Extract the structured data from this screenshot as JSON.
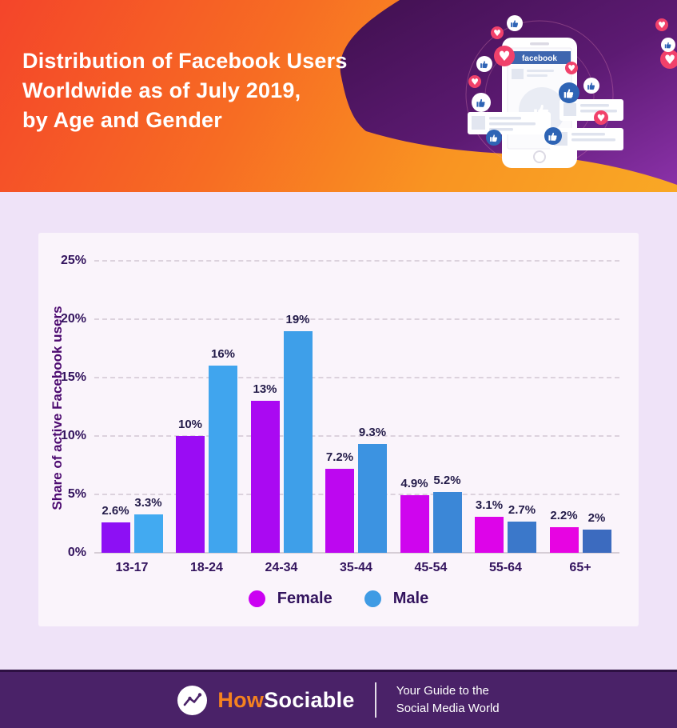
{
  "header": {
    "title_lines": [
      "Distribution of Facebook Users",
      "Worldwide as of July 2019,",
      "by Age and Gender"
    ],
    "phone": {
      "brand": "facebook"
    }
  },
  "chart_data": {
    "type": "bar",
    "title": "Distribution of Facebook users worldwide as of July 2019, by age and gender",
    "categories": [
      "13-17",
      "18-24",
      "24-34",
      "35-44",
      "45-54",
      "55-64",
      "65+"
    ],
    "series": [
      {
        "name": "Female",
        "values": [
          2.6,
          10,
          13,
          7.2,
          4.9,
          3.1,
          2.2
        ],
        "labels": [
          "2.6%",
          "10%",
          "13%",
          "7.2%",
          "4.9%",
          "3.1%",
          "2.2%"
        ],
        "colors": [
          "#8d10f4",
          "#9a0cf4",
          "#aa09f2",
          "#bd07f0",
          "#cf05ee",
          "#dd04e9",
          "#e704e2"
        ],
        "legend_color": "#cb01f2"
      },
      {
        "name": "Male",
        "values": [
          3.3,
          16,
          19,
          9.3,
          5.2,
          2.7,
          2
        ],
        "labels": [
          "3.3%",
          "16%",
          "19%",
          "9.3%",
          "5.2%",
          "2.7%",
          "2%"
        ],
        "colors": [
          "#42aaf1",
          "#40a5ee",
          "#3e9fe9",
          "#3c93e1",
          "#3b87d7",
          "#3b78ca",
          "#3c6bbf"
        ],
        "legend_color": "#3f9be4"
      }
    ],
    "xlabel": "",
    "ylabel": "Share of active Facebook users",
    "yticks": [
      "0%",
      "5%",
      "10%",
      "15%",
      "20%",
      "25%"
    ],
    "ylim": [
      0,
      25
    ],
    "grid": true,
    "legend_position": "bottom"
  },
  "footer": {
    "brand_how": "How",
    "brand_sociable": "Sociable",
    "tagline_line1": "Your Guide to the",
    "tagline_line2": "Social Media World"
  },
  "colors": {
    "header_gradient_start": "#f4452a",
    "header_gradient_end": "#f9a825",
    "header_blob_dark": "#40104f",
    "header_blob_light": "#8a31a8",
    "page_bg": "#efe3f8",
    "card_bg": "#faf4fb",
    "footer_bg": "#4a2268",
    "brand_orange": "#f5821f",
    "facebook_blue": "#3e66af",
    "heart_red": "#f1416b",
    "thumb_blue": "#2e64b5",
    "axis_text": "#33145e",
    "bar_label_text": "#241c4a"
  }
}
